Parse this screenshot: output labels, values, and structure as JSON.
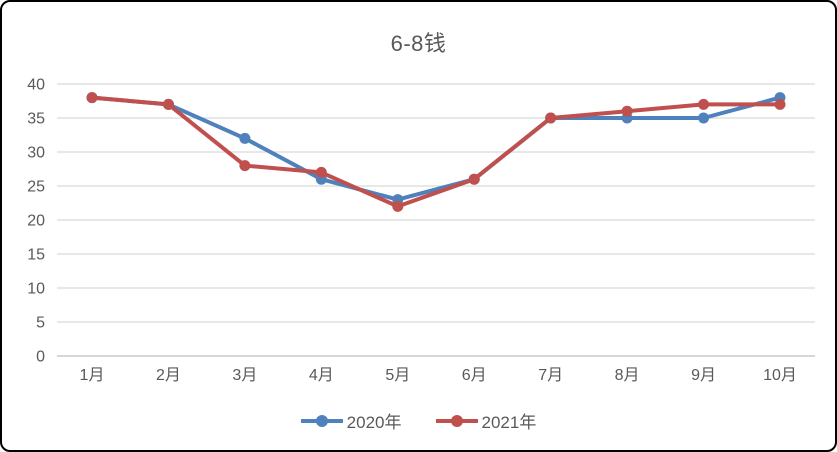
{
  "chart": {
    "title": "6-8钱",
    "background": "#ffffff",
    "border_color": "#000000",
    "grid_color": "#d9d9d9",
    "axis_line_color": "#bfbfbf",
    "text_color": "#595959"
  },
  "chart_data": {
    "type": "line",
    "title": "6-8钱",
    "categories": [
      "1月",
      "2月",
      "3月",
      "4月",
      "5月",
      "6月",
      "7月",
      "8月",
      "9月",
      "10月"
    ],
    "series": [
      {
        "name": "2020年",
        "color": "#4F81BD",
        "values": [
          38,
          37,
          32,
          26,
          23,
          26,
          35,
          35,
          35,
          38
        ]
      },
      {
        "name": "2021年",
        "color": "#C0504D",
        "values": [
          38,
          37,
          28,
          27,
          22,
          26,
          35,
          36,
          37,
          37
        ]
      }
    ],
    "xlabel": "",
    "ylabel": "",
    "ylim": [
      0,
      40
    ],
    "ytick_step": 5,
    "yticks": [
      0,
      5,
      10,
      15,
      20,
      25,
      30,
      35,
      40
    ],
    "grid": true,
    "legend_position": "bottom",
    "marker": "circle"
  }
}
